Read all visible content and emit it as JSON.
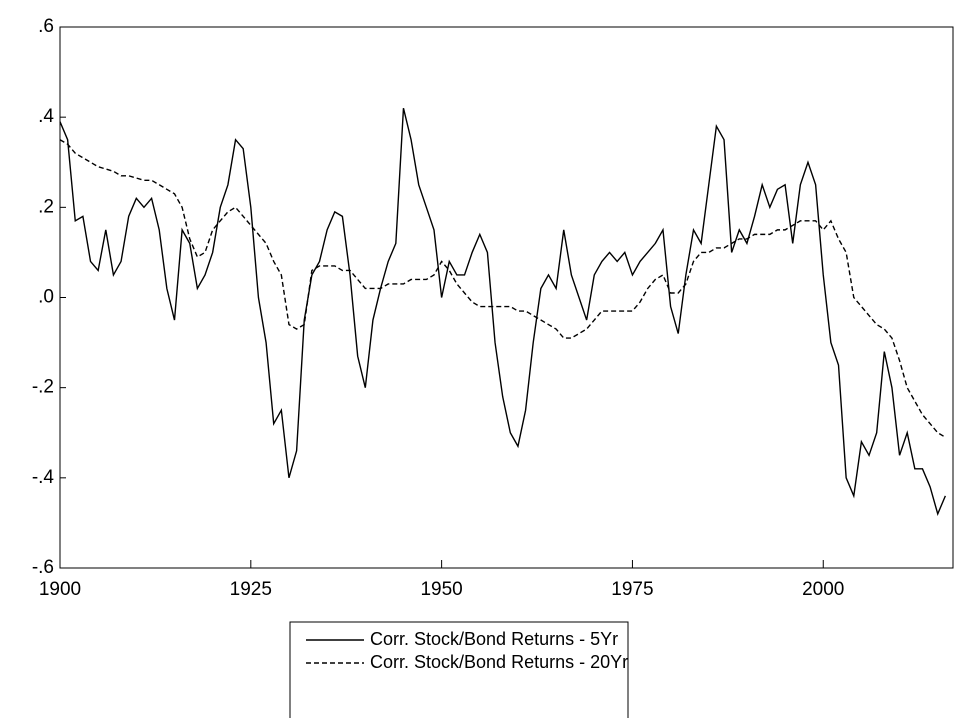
{
  "chart_data": {
    "type": "line",
    "x": [
      1900,
      1901,
      1902,
      1903,
      1904,
      1905,
      1906,
      1907,
      1908,
      1909,
      1910,
      1911,
      1912,
      1913,
      1914,
      1915,
      1916,
      1917,
      1918,
      1919,
      1920,
      1921,
      1922,
      1923,
      1924,
      1925,
      1926,
      1927,
      1928,
      1929,
      1930,
      1931,
      1932,
      1933,
      1934,
      1935,
      1936,
      1937,
      1938,
      1939,
      1940,
      1941,
      1942,
      1943,
      1944,
      1945,
      1946,
      1947,
      1948,
      1949,
      1950,
      1951,
      1952,
      1953,
      1954,
      1955,
      1956,
      1957,
      1958,
      1959,
      1960,
      1961,
      1962,
      1963,
      1964,
      1965,
      1966,
      1967,
      1968,
      1969,
      1970,
      1971,
      1972,
      1973,
      1974,
      1975,
      1976,
      1977,
      1978,
      1979,
      1980,
      1981,
      1982,
      1983,
      1984,
      1985,
      1986,
      1987,
      1988,
      1989,
      1990,
      1991,
      1992,
      1993,
      1994,
      1995,
      1996,
      1997,
      1998,
      1999,
      2000,
      2001,
      2002,
      2003,
      2004,
      2005,
      2006,
      2007,
      2008,
      2009,
      2010,
      2011,
      2012,
      2013,
      2014,
      2015,
      2016
    ],
    "series": [
      {
        "name": "Corr. Stock/Bond Returns - 5Yr",
        "color": "#000000",
        "dash": "solid",
        "values": [
          0.39,
          0.35,
          0.17,
          0.18,
          0.08,
          0.06,
          0.15,
          0.05,
          0.08,
          0.18,
          0.22,
          0.2,
          0.22,
          0.15,
          0.02,
          -0.05,
          0.15,
          0.12,
          0.02,
          0.05,
          0.1,
          0.2,
          0.25,
          0.35,
          0.33,
          0.2,
          0.0,
          -0.1,
          -0.28,
          -0.25,
          -0.4,
          -0.34,
          -0.05,
          0.05,
          0.08,
          0.15,
          0.19,
          0.18,
          0.05,
          -0.13,
          -0.2,
          -0.05,
          0.02,
          0.08,
          0.12,
          0.42,
          0.35,
          0.25,
          0.2,
          0.15,
          0.0,
          0.08,
          0.05,
          0.05,
          0.1,
          0.14,
          0.1,
          -0.1,
          -0.22,
          -0.3,
          -0.33,
          -0.25,
          -0.1,
          0.02,
          0.05,
          0.02,
          0.15,
          0.05,
          0.0,
          -0.05,
          0.05,
          0.08,
          0.1,
          0.08,
          0.1,
          0.05,
          0.08,
          0.1,
          0.12,
          0.15,
          -0.02,
          -0.08,
          0.05,
          0.15,
          0.12,
          0.25,
          0.38,
          0.35,
          0.1,
          0.15,
          0.12,
          0.18,
          0.25,
          0.2,
          0.24,
          0.25,
          0.12,
          0.25,
          0.3,
          0.25,
          0.05,
          -0.1,
          -0.15,
          -0.4,
          -0.44,
          -0.32,
          -0.35,
          -0.3,
          -0.12,
          -0.2,
          -0.35,
          -0.3,
          -0.38,
          -0.38,
          -0.42,
          -0.48,
          -0.44
        ]
      },
      {
        "name": "Corr. Stock/Bond Returns - 20Yr",
        "color": "#000000",
        "dash": "dashed",
        "values": [
          0.35,
          0.34,
          0.32,
          0.31,
          0.3,
          0.29,
          0.285,
          0.28,
          0.27,
          0.27,
          0.265,
          0.26,
          0.26,
          0.25,
          0.24,
          0.23,
          0.2,
          0.13,
          0.09,
          0.1,
          0.15,
          0.17,
          0.19,
          0.2,
          0.18,
          0.16,
          0.14,
          0.12,
          0.08,
          0.05,
          -0.06,
          -0.07,
          -0.06,
          0.06,
          0.07,
          0.07,
          0.07,
          0.06,
          0.06,
          0.04,
          0.02,
          0.02,
          0.02,
          0.03,
          0.03,
          0.03,
          0.04,
          0.04,
          0.04,
          0.05,
          0.08,
          0.06,
          0.03,
          0.01,
          -0.01,
          -0.02,
          -0.02,
          -0.02,
          -0.02,
          -0.02,
          -0.03,
          -0.03,
          -0.04,
          -0.05,
          -0.06,
          -0.07,
          -0.09,
          -0.09,
          -0.08,
          -0.07,
          -0.05,
          -0.03,
          -0.03,
          -0.03,
          -0.03,
          -0.03,
          -0.01,
          0.02,
          0.04,
          0.05,
          0.01,
          0.01,
          0.03,
          0.08,
          0.1,
          0.1,
          0.11,
          0.11,
          0.12,
          0.13,
          0.13,
          0.14,
          0.14,
          0.14,
          0.15,
          0.15,
          0.16,
          0.17,
          0.17,
          0.17,
          0.15,
          0.17,
          0.13,
          0.1,
          0.0,
          -0.02,
          -0.04,
          -0.06,
          -0.07,
          -0.09,
          -0.14,
          -0.2,
          -0.23,
          -0.26,
          -0.28,
          -0.3,
          -0.31
        ]
      }
    ],
    "xlim": [
      1900,
      2017
    ],
    "xticks": [
      1900,
      1925,
      1950,
      1975,
      2000
    ],
    "ylim": [
      -0.6,
      0.6
    ],
    "yticks": [
      {
        "value": -0.6,
        "label": "-.6"
      },
      {
        "value": -0.4,
        "label": "-.4"
      },
      {
        "value": -0.2,
        "label": "-.2"
      },
      {
        "value": 0,
        "label": ".0"
      },
      {
        "value": 0.2,
        "label": ".2"
      },
      {
        "value": 0.4,
        "label": ".4"
      },
      {
        "value": 0.6,
        "label": ".6"
      }
    ],
    "grid": false,
    "legend": "bottom"
  }
}
